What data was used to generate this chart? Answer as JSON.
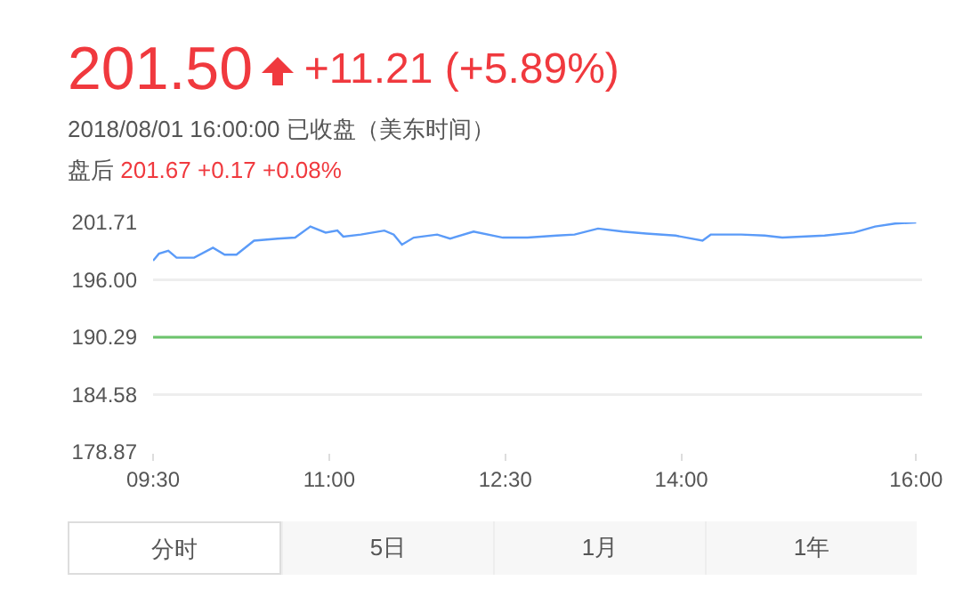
{
  "chart_data": {
    "type": "line",
    "title": "201.50",
    "subtitle": "2018/08/01 16:00:00 已收盘（美东时间）",
    "annotations": [
      "+11.21 (+5.89%)",
      "盘后 201.67 +0.17 +0.08%",
      "分时",
      "5日",
      "1月",
      "1年"
    ],
    "series": [
      {
        "color": "#5b9bf8",
        "x": [
          9.5,
          9.55,
          9.63,
          9.7,
          9.85,
          10.01,
          10.11,
          10.21,
          10.36,
          10.56,
          10.71,
          10.84,
          10.97,
          11.07,
          11.12,
          11.27,
          11.47,
          11.55,
          11.62,
          11.72,
          11.92,
          12.03,
          12.23,
          12.48,
          12.69,
          12.94,
          13.09,
          13.29,
          13.5,
          13.7,
          13.95,
          14.18,
          14.25,
          14.51,
          14.71,
          14.86,
          15.22,
          15.47,
          15.65,
          15.82,
          16.0
        ],
        "values": [
          197.9,
          198.6,
          198.9,
          198.2,
          198.2,
          199.2,
          198.5,
          198.5,
          199.9,
          200.1,
          200.2,
          201.3,
          200.7,
          200.9,
          200.3,
          200.5,
          200.9,
          200.5,
          199.5,
          200.2,
          200.5,
          200.1,
          200.8,
          200.2,
          200.2,
          200.4,
          200.5,
          201.1,
          200.8,
          200.6,
          200.4,
          199.9,
          200.5,
          200.5,
          200.4,
          200.2,
          200.4,
          200.7,
          201.3,
          201.6,
          201.7
        ]
      }
    ],
    "xlim": [
      9.5,
      16.05
    ],
    "xticks": [
      {
        "value": 9.5,
        "label": "09:30"
      },
      {
        "value": 11,
        "label": "11:00"
      },
      {
        "value": 12.5,
        "label": "12:30"
      },
      {
        "value": 14,
        "label": "14:00"
      },
      {
        "value": 16,
        "label": "16:00"
      }
    ],
    "ylim": [
      178.87,
      201.71
    ],
    "yticks": [
      178.87,
      184.58,
      190.29,
      {
        "value": 196,
        "label": "196.00"
      },
      201.71
    ],
    "ref_lines": [
      {
        "axis": "y",
        "value": 190.29,
        "color": "#6cc46c"
      }
    ],
    "grid": "y",
    "legend": false,
    "marker": "none",
    "line_style": "solid"
  }
}
